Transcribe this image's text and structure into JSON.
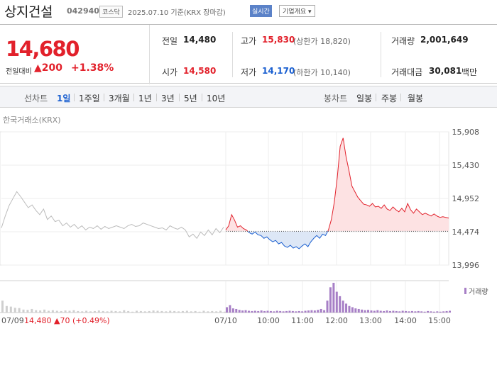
{
  "header": {
    "name": "상지건설",
    "code": "042940",
    "market": "코스닥",
    "date": "2025.07.10 기준(KRX 장마감)",
    "realtime_btn": "실시간",
    "info_btn": "기업개요 ▾"
  },
  "summary": {
    "price": "14,680",
    "cmp_label": "전일대비",
    "cmp_value": "▲200",
    "cmp_pct": "+1.38%",
    "prev_label": "전일",
    "prev": "14,480",
    "high_label": "고가",
    "high": "15,830",
    "upper": "(상한가 18,820)",
    "vol_label": "거래량",
    "vol": "2,001,649",
    "open_label": "시가",
    "open": "14,580",
    "low_label": "저가",
    "low": "14,170",
    "lower": "(하한가 10,140)",
    "amt_label": "거래대금",
    "amt": "30,081",
    "amt_unit": "백만"
  },
  "tabs": {
    "line_label": "선차트",
    "line": [
      "1일",
      "1주일",
      "3개월",
      "1년",
      "3년",
      "5년",
      "10년"
    ],
    "active": "1일",
    "candle_label": "봉차트",
    "candle": [
      "일봉",
      "주봉",
      "월봉"
    ]
  },
  "source": "한국거래소(KRX)",
  "colors": {
    "up": "#e2212b",
    "down": "#1a5fd0",
    "prev": "#bbbbbb",
    "volume": "#a77fc6"
  },
  "chart_data": {
    "type": "line",
    "ylim": [
      13996,
      15908
    ],
    "yticks": [
      "15,908",
      "15,430",
      "14,952",
      "14,474",
      "13,996"
    ],
    "base": 14480,
    "xticks": [
      "07/10",
      "10:00",
      "11:00",
      "12:00",
      "13:00",
      "14:00",
      "15:00"
    ],
    "x_start": "07/09",
    "footer": "14,480 ▲70 (+0.49%)",
    "volume_label": "거래량",
    "prev_day": [
      14530,
      14700,
      14850,
      14950,
      15050,
      14980,
      14900,
      14820,
      14860,
      14780,
      14720,
      14800,
      14650,
      14700,
      14620,
      14640,
      14560,
      14600,
      14540,
      14580,
      14520,
      14560,
      14500,
      14540,
      14520,
      14560,
      14510,
      14550,
      14520,
      14540,
      14560,
      14540,
      14520,
      14560,
      14580,
      14550,
      14560,
      14600,
      14580,
      14560,
      14540,
      14520,
      14530,
      14500,
      14560,
      14530,
      14510,
      14540,
      14500,
      14400,
      14440,
      14380,
      14470,
      14420,
      14500,
      14430,
      14520,
      14460,
      14540
    ],
    "today": [
      14500,
      14560,
      14720,
      14640,
      14540,
      14560,
      14520,
      14500,
      14460,
      14440,
      14470,
      14430,
      14420,
      14380,
      14400,
      14360,
      14330,
      14350,
      14300,
      14320,
      14270,
      14250,
      14280,
      14240,
      14260,
      14230,
      14270,
      14300,
      14260,
      14330,
      14380,
      14420,
      14380,
      14440,
      14420,
      14500,
      14650,
      14900,
      15250,
      15700,
      15820,
      15550,
      15350,
      15130,
      15050,
      14970,
      14920,
      14870,
      14860,
      14840,
      14880,
      14830,
      14840,
      14810,
      14860,
      14800,
      14780,
      14830,
      14790,
      14760,
      14810,
      14760,
      14880,
      14790,
      14740,
      14800,
      14760,
      14720,
      14740,
      14720,
      14700,
      14730,
      14700,
      14680,
      14690,
      14680,
      14670
    ],
    "volume_prev": [
      40,
      22,
      20,
      16,
      15,
      10,
      9,
      12,
      8,
      7,
      10,
      6,
      8,
      6,
      5,
      7,
      6,
      8,
      5,
      4,
      6,
      4,
      5,
      7,
      5,
      4,
      6,
      5,
      4,
      8,
      5,
      3,
      6,
      5,
      4,
      5,
      7,
      6,
      5,
      4,
      6,
      5,
      4,
      5,
      6,
      4,
      5,
      3,
      6,
      4,
      5,
      4,
      6,
      3
    ],
    "volume_today": [
      18,
      25,
      14,
      12,
      9,
      7,
      8,
      6,
      5,
      6,
      5,
      7,
      5,
      6,
      5,
      4,
      6,
      5,
      4,
      5,
      6,
      5,
      4,
      5,
      4,
      6,
      7,
      8,
      7,
      9,
      12,
      8,
      40,
      85,
      100,
      70,
      55,
      40,
      30,
      22,
      18,
      14,
      12,
      10,
      8,
      9,
      7,
      6,
      8,
      6,
      5,
      7,
      5,
      6,
      5,
      4,
      6,
      5,
      4,
      5,
      4,
      5,
      4,
      3,
      5,
      4,
      3,
      4,
      3,
      4,
      5,
      6
    ]
  }
}
